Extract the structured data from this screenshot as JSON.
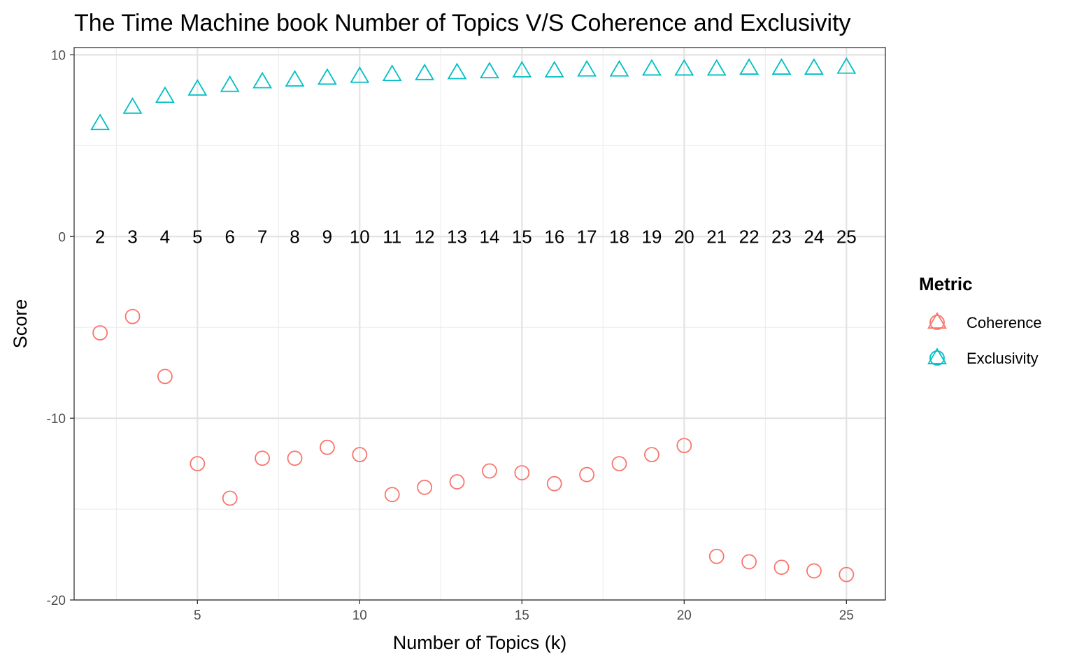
{
  "chart_data": {
    "type": "scatter",
    "title": "The Time Machine book Number of Topics V/S Coherence and Exclusivity",
    "xlabel": "Number of Topics (k)",
    "ylabel": "Score",
    "xlim": [
      1.2,
      26.2
    ],
    "ylim": [
      -20,
      10.4
    ],
    "x_ticks": [
      5,
      10,
      15,
      20,
      25
    ],
    "y_ticks": [
      -20,
      -10,
      0,
      10
    ],
    "grid": true,
    "legend": {
      "title": "Metric",
      "placement": "right",
      "entries": [
        "Coherence",
        "Exclusivity"
      ]
    },
    "x": [
      2,
      3,
      4,
      5,
      6,
      7,
      8,
      9,
      10,
      11,
      12,
      13,
      14,
      15,
      16,
      17,
      18,
      19,
      20,
      21,
      22,
      23,
      24,
      25
    ],
    "k_labels": [
      "2",
      "3",
      "4",
      "5",
      "6",
      "7",
      "8",
      "9",
      "10",
      "11",
      "12",
      "13",
      "14",
      "15",
      "16",
      "17",
      "18",
      "19",
      "20",
      "21",
      "22",
      "23",
      "24",
      "25"
    ],
    "series": [
      {
        "name": "Coherence",
        "marker": "circle",
        "color": "#F8766D",
        "values": [
          -5.3,
          -4.4,
          -7.7,
          -12.5,
          -14.4,
          -12.2,
          -12.2,
          -11.6,
          -12.0,
          -14.2,
          -13.8,
          -13.5,
          -12.9,
          -13.0,
          -13.6,
          -13.1,
          -12.5,
          -12.0,
          -11.5,
          -17.6,
          -17.9,
          -18.2,
          -18.4,
          -18.6
        ]
      },
      {
        "name": "Exclusivity",
        "marker": "triangle",
        "color": "#00BFC4",
        "values": [
          6.2,
          7.1,
          7.7,
          8.1,
          8.3,
          8.5,
          8.6,
          8.7,
          8.8,
          8.9,
          8.95,
          9.0,
          9.05,
          9.1,
          9.1,
          9.15,
          9.15,
          9.2,
          9.2,
          9.2,
          9.25,
          9.25,
          9.25,
          9.3
        ]
      }
    ]
  }
}
